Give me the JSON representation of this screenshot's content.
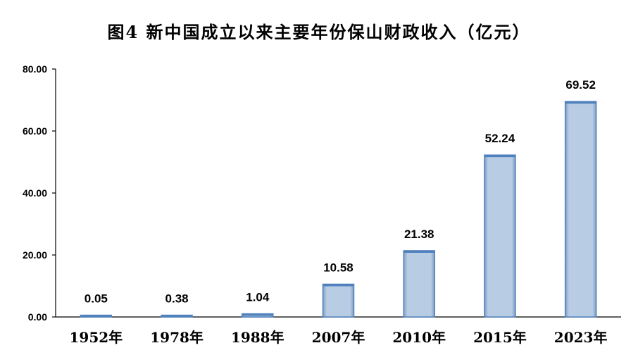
{
  "title": "图4   新中国成立以来主要年份保山财政收入（亿元）",
  "chart_data": {
    "type": "bar",
    "title": "图4   新中国成立以来主要年份保山财政收入（亿元）",
    "categories": [
      "1952年",
      "1978年",
      "1988年",
      "2007年",
      "2010年",
      "2015年",
      "2023年"
    ],
    "values": [
      0.05,
      0.38,
      1.04,
      10.58,
      21.38,
      52.24,
      69.52
    ],
    "value_labels": [
      "0.05",
      "0.38",
      "1.04",
      "10.58",
      "21.38",
      "52.24",
      "69.52"
    ],
    "yticks": [
      "0.00",
      "20.00",
      "40.00",
      "60.00",
      "80.00"
    ],
    "ylim": [
      0,
      80
    ],
    "xlabel": "",
    "ylabel": "",
    "grid": false,
    "bar_color": "#b8cce4",
    "bar_edge_color": "#4f81bd"
  }
}
